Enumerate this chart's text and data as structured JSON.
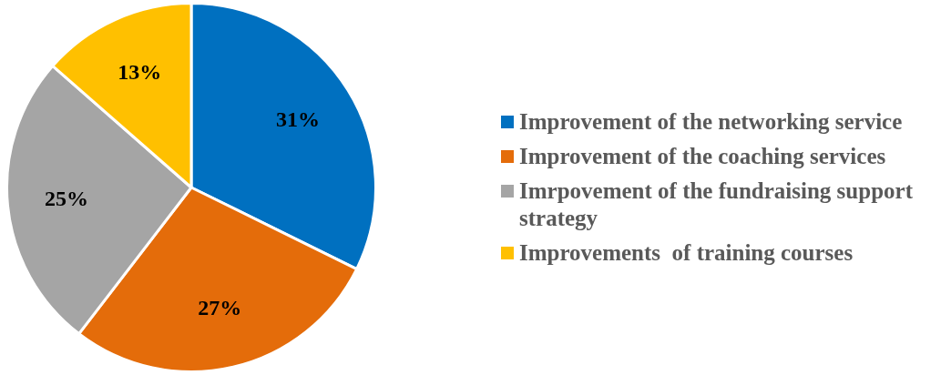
{
  "chart_data": {
    "type": "pie",
    "categories": [
      "Improvement of the networking service",
      "Improvement of the coaching services",
      "Imrpovement of the fundraising support strategy",
      "Improvements  of training courses"
    ],
    "values": [
      31,
      27,
      25,
      13
    ],
    "colors": [
      "#0070c0",
      "#e46c0a",
      "#a5a5a5",
      "#ffc000"
    ],
    "value_labels": [
      "31%",
      "27%",
      "25%",
      "13%"
    ],
    "legend": "right"
  }
}
